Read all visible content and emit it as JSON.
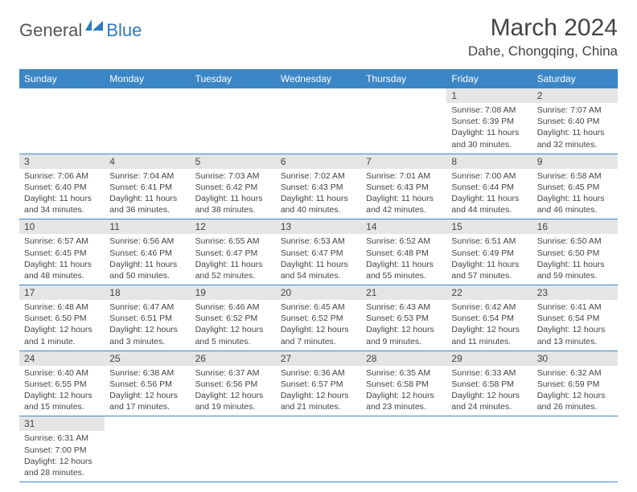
{
  "logo": {
    "text1": "General",
    "text2": "Blue"
  },
  "title": "March 2024",
  "location": "Dahe, Chongqing, China",
  "colors": {
    "header_bg": "#3b86c6",
    "header_text": "#ffffff",
    "daynum_bg": "#e5e5e5",
    "border": "#3b86c6",
    "body_text": "#444444"
  },
  "weekdays": [
    "Sunday",
    "Monday",
    "Tuesday",
    "Wednesday",
    "Thursday",
    "Friday",
    "Saturday"
  ],
  "weeks": [
    [
      null,
      null,
      null,
      null,
      null,
      {
        "n": "1",
        "sr": "Sunrise: 7:08 AM",
        "ss": "Sunset: 6:39 PM",
        "d1": "Daylight: 11 hours",
        "d2": "and 30 minutes."
      },
      {
        "n": "2",
        "sr": "Sunrise: 7:07 AM",
        "ss": "Sunset: 6:40 PM",
        "d1": "Daylight: 11 hours",
        "d2": "and 32 minutes."
      }
    ],
    [
      {
        "n": "3",
        "sr": "Sunrise: 7:06 AM",
        "ss": "Sunset: 6:40 PM",
        "d1": "Daylight: 11 hours",
        "d2": "and 34 minutes."
      },
      {
        "n": "4",
        "sr": "Sunrise: 7:04 AM",
        "ss": "Sunset: 6:41 PM",
        "d1": "Daylight: 11 hours",
        "d2": "and 36 minutes."
      },
      {
        "n": "5",
        "sr": "Sunrise: 7:03 AM",
        "ss": "Sunset: 6:42 PM",
        "d1": "Daylight: 11 hours",
        "d2": "and 38 minutes."
      },
      {
        "n": "6",
        "sr": "Sunrise: 7:02 AM",
        "ss": "Sunset: 6:43 PM",
        "d1": "Daylight: 11 hours",
        "d2": "and 40 minutes."
      },
      {
        "n": "7",
        "sr": "Sunrise: 7:01 AM",
        "ss": "Sunset: 6:43 PM",
        "d1": "Daylight: 11 hours",
        "d2": "and 42 minutes."
      },
      {
        "n": "8",
        "sr": "Sunrise: 7:00 AM",
        "ss": "Sunset: 6:44 PM",
        "d1": "Daylight: 11 hours",
        "d2": "and 44 minutes."
      },
      {
        "n": "9",
        "sr": "Sunrise: 6:58 AM",
        "ss": "Sunset: 6:45 PM",
        "d1": "Daylight: 11 hours",
        "d2": "and 46 minutes."
      }
    ],
    [
      {
        "n": "10",
        "sr": "Sunrise: 6:57 AM",
        "ss": "Sunset: 6:45 PM",
        "d1": "Daylight: 11 hours",
        "d2": "and 48 minutes."
      },
      {
        "n": "11",
        "sr": "Sunrise: 6:56 AM",
        "ss": "Sunset: 6:46 PM",
        "d1": "Daylight: 11 hours",
        "d2": "and 50 minutes."
      },
      {
        "n": "12",
        "sr": "Sunrise: 6:55 AM",
        "ss": "Sunset: 6:47 PM",
        "d1": "Daylight: 11 hours",
        "d2": "and 52 minutes."
      },
      {
        "n": "13",
        "sr": "Sunrise: 6:53 AM",
        "ss": "Sunset: 6:47 PM",
        "d1": "Daylight: 11 hours",
        "d2": "and 54 minutes."
      },
      {
        "n": "14",
        "sr": "Sunrise: 6:52 AM",
        "ss": "Sunset: 6:48 PM",
        "d1": "Daylight: 11 hours",
        "d2": "and 55 minutes."
      },
      {
        "n": "15",
        "sr": "Sunrise: 6:51 AM",
        "ss": "Sunset: 6:49 PM",
        "d1": "Daylight: 11 hours",
        "d2": "and 57 minutes."
      },
      {
        "n": "16",
        "sr": "Sunrise: 6:50 AM",
        "ss": "Sunset: 6:50 PM",
        "d1": "Daylight: 11 hours",
        "d2": "and 59 minutes."
      }
    ],
    [
      {
        "n": "17",
        "sr": "Sunrise: 6:48 AM",
        "ss": "Sunset: 6:50 PM",
        "d1": "Daylight: 12 hours",
        "d2": "and 1 minute."
      },
      {
        "n": "18",
        "sr": "Sunrise: 6:47 AM",
        "ss": "Sunset: 6:51 PM",
        "d1": "Daylight: 12 hours",
        "d2": "and 3 minutes."
      },
      {
        "n": "19",
        "sr": "Sunrise: 6:46 AM",
        "ss": "Sunset: 6:52 PM",
        "d1": "Daylight: 12 hours",
        "d2": "and 5 minutes."
      },
      {
        "n": "20",
        "sr": "Sunrise: 6:45 AM",
        "ss": "Sunset: 6:52 PM",
        "d1": "Daylight: 12 hours",
        "d2": "and 7 minutes."
      },
      {
        "n": "21",
        "sr": "Sunrise: 6:43 AM",
        "ss": "Sunset: 6:53 PM",
        "d1": "Daylight: 12 hours",
        "d2": "and 9 minutes."
      },
      {
        "n": "22",
        "sr": "Sunrise: 6:42 AM",
        "ss": "Sunset: 6:54 PM",
        "d1": "Daylight: 12 hours",
        "d2": "and 11 minutes."
      },
      {
        "n": "23",
        "sr": "Sunrise: 6:41 AM",
        "ss": "Sunset: 6:54 PM",
        "d1": "Daylight: 12 hours",
        "d2": "and 13 minutes."
      }
    ],
    [
      {
        "n": "24",
        "sr": "Sunrise: 6:40 AM",
        "ss": "Sunset: 6:55 PM",
        "d1": "Daylight: 12 hours",
        "d2": "and 15 minutes."
      },
      {
        "n": "25",
        "sr": "Sunrise: 6:38 AM",
        "ss": "Sunset: 6:56 PM",
        "d1": "Daylight: 12 hours",
        "d2": "and 17 minutes."
      },
      {
        "n": "26",
        "sr": "Sunrise: 6:37 AM",
        "ss": "Sunset: 6:56 PM",
        "d1": "Daylight: 12 hours",
        "d2": "and 19 minutes."
      },
      {
        "n": "27",
        "sr": "Sunrise: 6:36 AM",
        "ss": "Sunset: 6:57 PM",
        "d1": "Daylight: 12 hours",
        "d2": "and 21 minutes."
      },
      {
        "n": "28",
        "sr": "Sunrise: 6:35 AM",
        "ss": "Sunset: 6:58 PM",
        "d1": "Daylight: 12 hours",
        "d2": "and 23 minutes."
      },
      {
        "n": "29",
        "sr": "Sunrise: 6:33 AM",
        "ss": "Sunset: 6:58 PM",
        "d1": "Daylight: 12 hours",
        "d2": "and 24 minutes."
      },
      {
        "n": "30",
        "sr": "Sunrise: 6:32 AM",
        "ss": "Sunset: 6:59 PM",
        "d1": "Daylight: 12 hours",
        "d2": "and 26 minutes."
      }
    ],
    [
      {
        "n": "31",
        "sr": "Sunrise: 6:31 AM",
        "ss": "Sunset: 7:00 PM",
        "d1": "Daylight: 12 hours",
        "d2": "and 28 minutes."
      },
      null,
      null,
      null,
      null,
      null,
      null
    ]
  ]
}
